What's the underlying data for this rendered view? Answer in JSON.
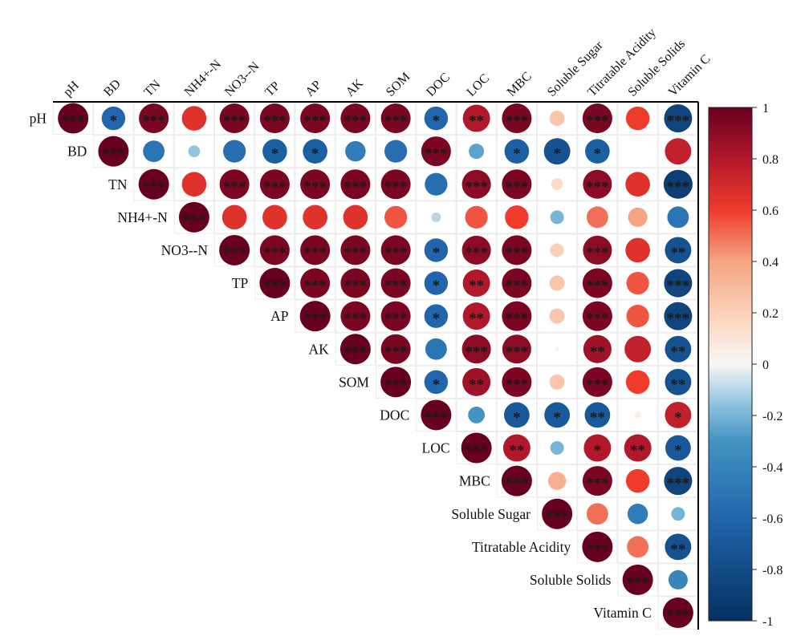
{
  "chart_data": {
    "type": "heatmap",
    "variables": [
      "pH",
      "BD",
      "TN",
      "NH4+-N",
      "NO3--N",
      "TP",
      "AP",
      "AK",
      "SOM",
      "DOC",
      "LOC",
      "MBC",
      "Soluble Sugar",
      "Titratable Acidity",
      "Soluble Solids",
      "Vitamin C"
    ],
    "rows": [
      {
        "label": "pH",
        "values": [
          1,
          -0.6,
          0.95,
          0.65,
          0.95,
          0.95,
          0.95,
          0.95,
          0.95,
          -0.6,
          0.8,
          0.95,
          0.25,
          0.95,
          0.6,
          -0.85
        ],
        "stars": [
          "***",
          "*",
          "***",
          "",
          "***",
          "***",
          "***",
          "***",
          "***",
          "*",
          "**",
          "***",
          "",
          "***",
          "",
          "***"
        ]
      },
      {
        "label": "BD",
        "values": [
          1,
          -0.5,
          -0.15,
          -0.55,
          -0.65,
          -0.65,
          -0.45,
          -0.55,
          0.95,
          -0.25,
          -0.65,
          -0.75,
          -0.65,
          0,
          0.75
        ],
        "stars": [
          "***",
          "",
          "",
          "",
          "*",
          "*",
          "",
          "",
          "***",
          "",
          "*",
          "*",
          "*",
          "",
          ""
        ]
      },
      {
        "label": "TN",
        "values": [
          1,
          0.65,
          0.95,
          0.95,
          0.95,
          0.95,
          0.95,
          -0.55,
          0.9,
          0.95,
          0.15,
          0.9,
          0.65,
          -0.9
        ],
        "stars": [
          "***",
          "",
          "***",
          "***",
          "***",
          "***",
          "***",
          "",
          "***",
          "***",
          "",
          "***",
          "",
          "***"
        ]
      },
      {
        "label": "NH4+-N",
        "values": [
          1,
          0.65,
          0.65,
          0.65,
          0.65,
          0.55,
          -0.1,
          0.55,
          0.6,
          -0.2,
          0.5,
          0.4,
          -0.5
        ],
        "stars": [
          "***",
          "",
          "",
          "",
          "",
          "",
          "",
          "",
          "",
          "",
          "",
          "",
          ""
        ]
      },
      {
        "label": "NO3--N",
        "values": [
          1,
          0.95,
          0.95,
          0.95,
          0.95,
          -0.6,
          0.9,
          0.95,
          0.2,
          0.9,
          0.65,
          -0.75
        ],
        "stars": [
          "***",
          "***",
          "***",
          "***",
          "***",
          "*",
          "***",
          "***",
          "",
          "***",
          "",
          "**"
        ]
      },
      {
        "label": "TP",
        "values": [
          1,
          0.95,
          0.95,
          0.95,
          -0.6,
          0.8,
          0.95,
          0.25,
          0.95,
          0.55,
          -0.85
        ],
        "stars": [
          "***",
          "***",
          "***",
          "***",
          "*",
          "**",
          "***",
          "",
          "***",
          "",
          "***"
        ]
      },
      {
        "label": "AP",
        "values": [
          1,
          0.95,
          0.95,
          -0.6,
          0.8,
          0.95,
          0.25,
          0.95,
          0.55,
          -0.85
        ],
        "stars": [
          "***",
          "***",
          "***",
          "*",
          "**",
          "***",
          "",
          "***",
          "",
          "***"
        ]
      },
      {
        "label": "AK",
        "values": [
          1,
          0.95,
          -0.5,
          0.9,
          0.9,
          0.02,
          0.85,
          0.75,
          -0.75
        ],
        "stars": [
          "***",
          "***",
          "",
          "***",
          "***",
          "",
          "**",
          "",
          "**"
        ]
      },
      {
        "label": "SOM",
        "values": [
          1,
          -0.6,
          0.85,
          0.95,
          0.25,
          0.95,
          0.6,
          -0.75
        ],
        "stars": [
          "***",
          "*",
          "**",
          "***",
          "",
          "***",
          "",
          "**"
        ]
      },
      {
        "label": "DOC",
        "values": [
          1,
          -0.3,
          -0.7,
          -0.7,
          -0.7,
          0.05,
          0.75
        ],
        "stars": [
          "***",
          "",
          "*",
          "*",
          "**",
          "",
          "*"
        ]
      },
      {
        "label": "LOC",
        "values": [
          1,
          0.8,
          -0.2,
          0.8,
          0.8,
          -0.7
        ],
        "stars": [
          "***",
          "**",
          "",
          "*",
          "**",
          "*"
        ]
      },
      {
        "label": "MBC",
        "values": [
          1,
          0.35,
          0.95,
          0.6,
          -0.85
        ],
        "stars": [
          "***",
          "",
          "***",
          "",
          "***"
        ]
      },
      {
        "label": "Soluble Sugar",
        "values": [
          1,
          0.5,
          -0.45,
          -0.2
        ],
        "stars": [
          "***",
          "",
          "",
          ""
        ]
      },
      {
        "label": "Titratable Acidity",
        "values": [
          1,
          0.5,
          -0.75
        ],
        "stars": [
          "***",
          "",
          "**"
        ]
      },
      {
        "label": "Soluble Solids",
        "values": [
          1,
          -0.4
        ],
        "stars": [
          "***",
          ""
        ]
      },
      {
        "label": "Vitamin C",
        "values": [
          1
        ],
        "stars": [
          "***"
        ]
      }
    ],
    "color_scale": {
      "min": -1,
      "max": 1,
      "stops": [
        {
          "value": -1,
          "color": "#053061"
        },
        {
          "value": -0.6,
          "color": "#2166ac"
        },
        {
          "value": -0.3,
          "color": "#4393c3"
        },
        {
          "value": -0.15,
          "color": "#92c5de"
        },
        {
          "value": 0,
          "color": "#f7f7f7"
        },
        {
          "value": 0.15,
          "color": "#fddbc7"
        },
        {
          "value": 0.4,
          "color": "#f4a582"
        },
        {
          "value": 0.6,
          "color": "#ef3b2c"
        },
        {
          "value": 0.8,
          "color": "#b2182b"
        },
        {
          "value": 1,
          "color": "#67001f"
        }
      ],
      "ticks": [
        "1",
        "0.8",
        "0.6",
        "0.4",
        "0.2",
        "0",
        "-0.2",
        "-0.4",
        "-0.6",
        "-0.8",
        "-1"
      ]
    },
    "legend_position": "right",
    "grid": true
  }
}
